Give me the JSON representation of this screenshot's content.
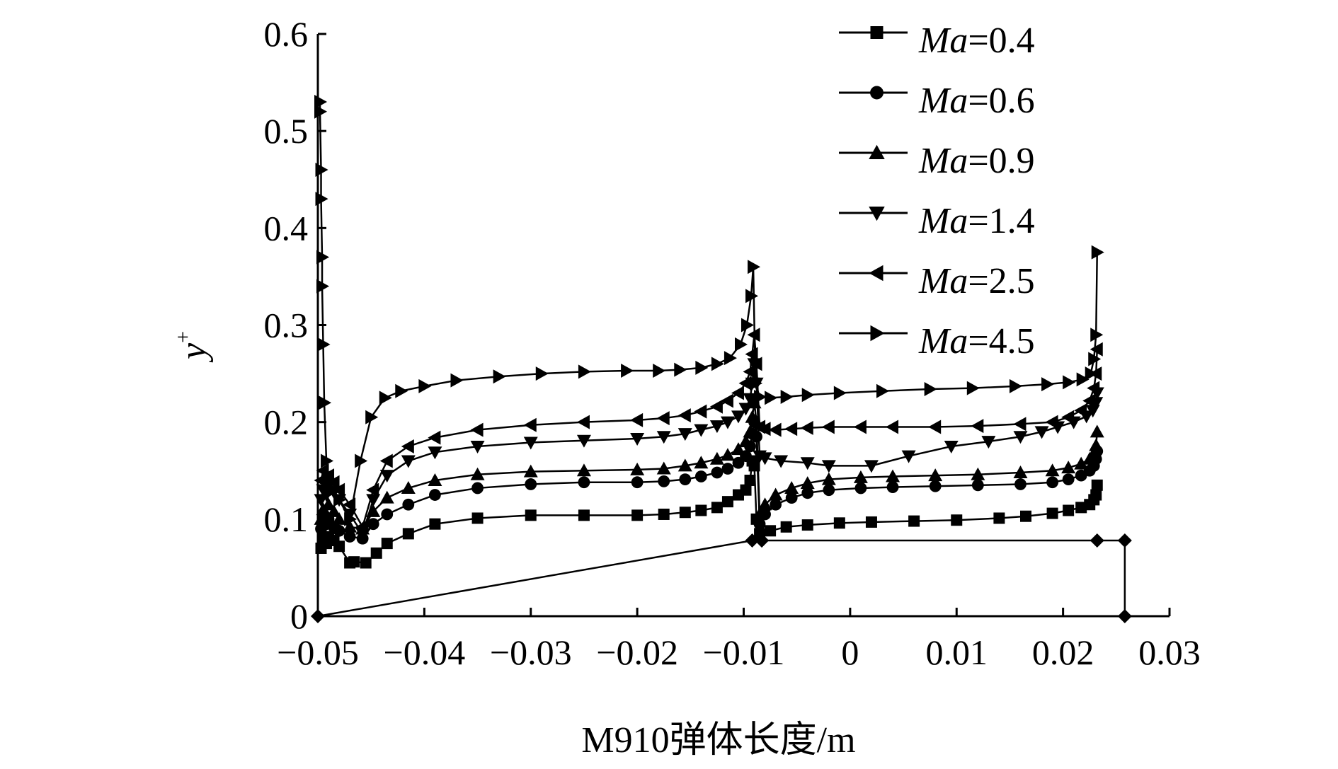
{
  "chart_data": {
    "type": "line",
    "xlabel": "M910弹体长度/m",
    "ylabel": "y",
    "ylabel_sup": "+",
    "xlim": [
      -0.05,
      0.03
    ],
    "ylim": [
      0,
      0.6
    ],
    "x_ticks": [
      -0.05,
      -0.04,
      -0.03,
      -0.02,
      -0.01,
      0,
      0.01,
      0.02,
      0.03
    ],
    "x_tick_labels": [
      "−0.05",
      "−0.04",
      "−0.03",
      "−0.02",
      "−0.01",
      "0",
      "0.01",
      "0.02",
      "0.03"
    ],
    "y_ticks": [
      0,
      0.1,
      0.2,
      0.3,
      0.4,
      0.5,
      0.6
    ],
    "y_tick_labels": [
      "0",
      "0.1",
      "0.2",
      "0.3",
      "0.4",
      "0.5",
      "0.6"
    ],
    "grid": false,
    "legend_position": "top-right",
    "outline": {
      "marker": "diamond",
      "x": [
        -0.05,
        -0.0092,
        -0.0083,
        -0.0083,
        0.0232,
        0.0258,
        0.0258
      ],
      "y": [
        0.0,
        0.078,
        0.078,
        0.078,
        0.078,
        0.078,
        0.0
      ]
    },
    "series": [
      {
        "name": "0.4",
        "marker": "square",
        "x": [
          -0.0497,
          -0.0495,
          -0.0492,
          -0.049,
          -0.0485,
          -0.048,
          -0.047,
          -0.0466,
          -0.0455,
          -0.0445,
          -0.0435,
          -0.0415,
          -0.039,
          -0.035,
          -0.03,
          -0.025,
          -0.02,
          -0.0175,
          -0.0155,
          -0.014,
          -0.0125,
          -0.0115,
          -0.0105,
          -0.0098,
          -0.0094,
          -0.0092,
          -0.009,
          -0.0088,
          -0.0085,
          -0.0075,
          -0.006,
          -0.004,
          -0.001,
          0.002,
          0.006,
          0.01,
          0.014,
          0.0165,
          0.019,
          0.0205,
          0.0217,
          0.0225,
          0.0229,
          0.0231,
          0.0232
        ],
        "y": [
          0.07,
          0.08,
          0.075,
          0.082,
          0.078,
          0.072,
          0.055,
          0.056,
          0.055,
          0.065,
          0.075,
          0.085,
          0.095,
          0.101,
          0.104,
          0.104,
          0.104,
          0.105,
          0.107,
          0.109,
          0.112,
          0.118,
          0.125,
          0.13,
          0.14,
          0.16,
          0.155,
          0.1,
          0.085,
          0.088,
          0.092,
          0.094,
          0.096,
          0.097,
          0.098,
          0.099,
          0.101,
          0.103,
          0.106,
          0.109,
          0.112,
          0.115,
          0.12,
          0.125,
          0.135
        ]
      },
      {
        "name": "0.6",
        "marker": "circle",
        "x": [
          -0.0497,
          -0.0495,
          -0.0492,
          -0.049,
          -0.0485,
          -0.048,
          -0.047,
          -0.0458,
          -0.0448,
          -0.0435,
          -0.0415,
          -0.039,
          -0.035,
          -0.03,
          -0.025,
          -0.02,
          -0.0175,
          -0.0155,
          -0.014,
          -0.0125,
          -0.0115,
          -0.0105,
          -0.0098,
          -0.0094,
          -0.0092,
          -0.009,
          -0.0088,
          -0.0085,
          -0.008,
          -0.007,
          -0.0055,
          -0.004,
          -0.002,
          0.001,
          0.004,
          0.008,
          0.012,
          0.016,
          0.019,
          0.0205,
          0.0217,
          0.0225,
          0.0229,
          0.0231,
          0.0232
        ],
        "y": [
          0.09,
          0.1,
          0.095,
          0.1,
          0.092,
          0.088,
          0.082,
          0.08,
          0.095,
          0.105,
          0.115,
          0.125,
          0.132,
          0.136,
          0.138,
          0.138,
          0.139,
          0.141,
          0.144,
          0.148,
          0.152,
          0.158,
          0.165,
          0.175,
          0.188,
          0.2,
          0.185,
          0.095,
          0.105,
          0.115,
          0.122,
          0.127,
          0.13,
          0.132,
          0.133,
          0.134,
          0.135,
          0.136,
          0.138,
          0.141,
          0.145,
          0.15,
          0.155,
          0.162,
          0.17
        ]
      },
      {
        "name": "0.9",
        "marker": "triangle-up",
        "x": [
          -0.0497,
          -0.0495,
          -0.0492,
          -0.049,
          -0.0485,
          -0.048,
          -0.047,
          -0.0458,
          -0.0448,
          -0.0435,
          -0.0415,
          -0.039,
          -0.035,
          -0.03,
          -0.025,
          -0.02,
          -0.0175,
          -0.0155,
          -0.014,
          -0.0125,
          -0.0115,
          -0.0105,
          -0.0098,
          -0.0094,
          -0.0092,
          -0.009,
          -0.0088,
          -0.0085,
          -0.008,
          -0.007,
          -0.0055,
          -0.004,
          -0.002,
          0.001,
          0.004,
          0.008,
          0.012,
          0.016,
          0.019,
          0.0205,
          0.0217,
          0.0225,
          0.0229,
          0.0231,
          0.0232
        ],
        "y": [
          0.1,
          0.11,
          0.105,
          0.115,
          0.108,
          0.1,
          0.092,
          0.09,
          0.108,
          0.122,
          0.132,
          0.14,
          0.146,
          0.149,
          0.15,
          0.151,
          0.152,
          0.155,
          0.158,
          0.162,
          0.166,
          0.172,
          0.18,
          0.19,
          0.205,
          0.22,
          0.2,
          0.105,
          0.115,
          0.125,
          0.132,
          0.137,
          0.141,
          0.143,
          0.144,
          0.145,
          0.146,
          0.148,
          0.15,
          0.153,
          0.157,
          0.162,
          0.168,
          0.176,
          0.19
        ]
      },
      {
        "name": "1.4",
        "marker": "triangle-down",
        "x": [
          -0.0497,
          -0.0495,
          -0.0492,
          -0.049,
          -0.0485,
          -0.048,
          -0.047,
          -0.0458,
          -0.0448,
          -0.0435,
          -0.0415,
          -0.039,
          -0.035,
          -0.03,
          -0.025,
          -0.02,
          -0.0175,
          -0.0155,
          -0.014,
          -0.0125,
          -0.0115,
          -0.0105,
          -0.0098,
          -0.0094,
          -0.0092,
          -0.009,
          -0.0088,
          -0.0085,
          -0.008,
          -0.0065,
          -0.004,
          -0.002,
          0.002,
          0.0055,
          0.0095,
          0.013,
          0.016,
          0.018,
          0.0195,
          0.021,
          0.0222,
          0.0228,
          0.0231,
          0.0232
        ],
        "y": [
          0.12,
          0.13,
          0.125,
          0.135,
          0.128,
          0.12,
          0.105,
          0.085,
          0.12,
          0.145,
          0.16,
          0.169,
          0.175,
          0.179,
          0.181,
          0.183,
          0.185,
          0.188,
          0.192,
          0.196,
          0.2,
          0.206,
          0.214,
          0.224,
          0.24,
          0.26,
          0.24,
          0.165,
          0.163,
          0.16,
          0.158,
          0.155,
          0.155,
          0.165,
          0.175,
          0.18,
          0.185,
          0.19,
          0.195,
          0.2,
          0.206,
          0.212,
          0.22,
          0.23
        ]
      },
      {
        "name": "2.5",
        "marker": "triangle-left",
        "x": [
          -0.0497,
          -0.0495,
          -0.0492,
          -0.049,
          -0.0485,
          -0.048,
          -0.047,
          -0.0458,
          -0.0448,
          -0.0435,
          -0.0415,
          -0.039,
          -0.035,
          -0.03,
          -0.025,
          -0.02,
          -0.0175,
          -0.0155,
          -0.014,
          -0.0125,
          -0.0115,
          -0.0105,
          -0.0098,
          -0.0094,
          -0.0092,
          -0.009,
          -0.0088,
          -0.0085,
          -0.008,
          -0.007,
          -0.0055,
          -0.004,
          -0.002,
          0.001,
          0.004,
          0.008,
          0.012,
          0.016,
          0.019,
          0.0205,
          0.0217,
          0.0225,
          0.0229,
          0.0231,
          0.0232
        ],
        "y": [
          0.14,
          0.15,
          0.14,
          0.145,
          0.138,
          0.13,
          0.115,
          0.092,
          0.13,
          0.16,
          0.175,
          0.184,
          0.192,
          0.197,
          0.2,
          0.202,
          0.204,
          0.207,
          0.211,
          0.216,
          0.222,
          0.23,
          0.24,
          0.252,
          0.27,
          0.29,
          0.26,
          0.195,
          0.193,
          0.192,
          0.193,
          0.194,
          0.195,
          0.195,
          0.195,
          0.195,
          0.196,
          0.198,
          0.2,
          0.205,
          0.212,
          0.222,
          0.235,
          0.25,
          0.275
        ]
      },
      {
        "name": "4.5",
        "marker": "triangle-right",
        "x": [
          -0.0498,
          -0.0498,
          -0.0497,
          -0.0497,
          -0.0496,
          -0.0496,
          -0.0495,
          -0.0494,
          -0.0492,
          -0.049,
          -0.0485,
          -0.048,
          -0.047,
          -0.046,
          -0.045,
          -0.0437,
          -0.0422,
          -0.04,
          -0.037,
          -0.033,
          -0.029,
          -0.025,
          -0.021,
          -0.018,
          -0.016,
          -0.014,
          -0.0125,
          -0.0113,
          -0.0103,
          -0.0097,
          -0.0093,
          -0.0091,
          -0.0089,
          -0.0085,
          -0.0075,
          -0.006,
          -0.004,
          -0.001,
          0.003,
          0.0075,
          0.0115,
          0.0155,
          0.0185,
          0.0205,
          0.0218,
          0.0226,
          0.0229,
          0.0231,
          0.0232
        ],
        "y": [
          0.53,
          0.52,
          0.46,
          0.43,
          0.37,
          0.34,
          0.28,
          0.22,
          0.16,
          0.14,
          0.13,
          0.12,
          0.1,
          0.16,
          0.205,
          0.225,
          0.232,
          0.237,
          0.243,
          0.247,
          0.25,
          0.252,
          0.253,
          0.253,
          0.254,
          0.256,
          0.26,
          0.266,
          0.28,
          0.3,
          0.33,
          0.36,
          0.24,
          0.226,
          0.225,
          0.226,
          0.228,
          0.23,
          0.232,
          0.234,
          0.235,
          0.237,
          0.239,
          0.241,
          0.244,
          0.25,
          0.265,
          0.29,
          0.375
        ]
      }
    ]
  }
}
